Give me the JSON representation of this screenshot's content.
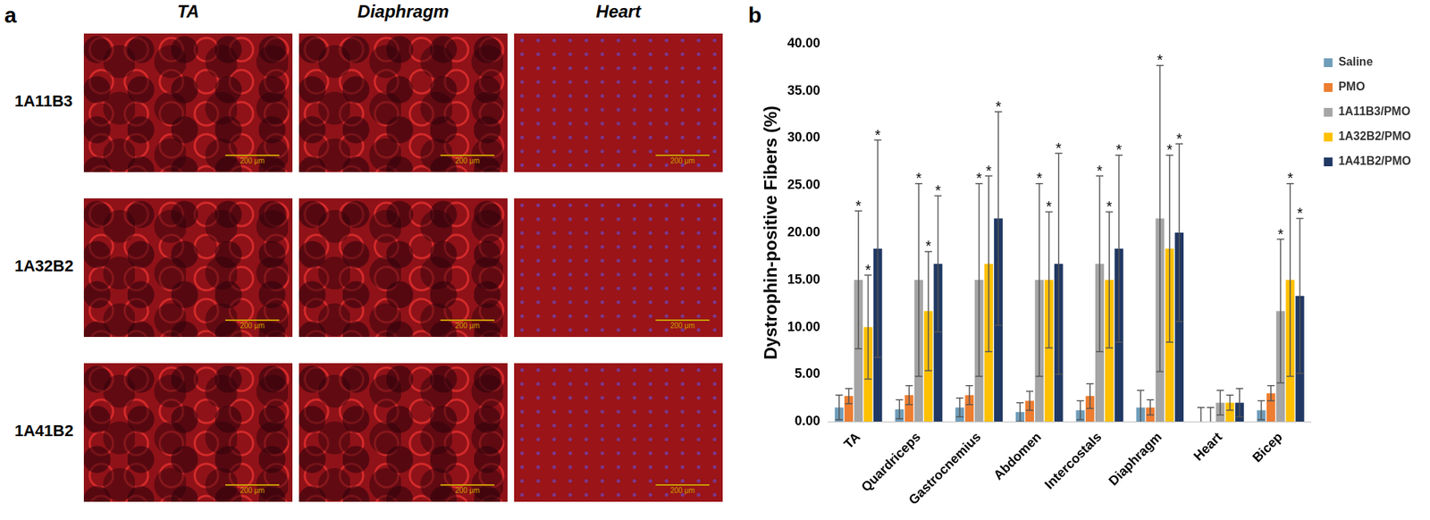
{
  "figure": {
    "panel_a": {
      "label": "a",
      "columns": [
        "TA",
        "Diaphragm",
        "Heart"
      ],
      "rows": [
        "1A11B3",
        "1A32B2",
        "1A41B2"
      ],
      "scale_bar": "200 μm"
    },
    "panel_b": {
      "label": "b"
    }
  },
  "chart_data": {
    "type": "bar",
    "y_label": "Dystrophin-positive Fibers (%)",
    "categories": [
      "TA",
      "Quardriceps",
      "Gastrocnemius",
      "Abdomen",
      "Intercostals",
      "Diaphragm",
      "Heart",
      "Bicep"
    ],
    "series": [
      {
        "name": "Saline",
        "color": "#6f9dba",
        "values": [
          1.5,
          1.3,
          1.5,
          1.0,
          1.2,
          1.5,
          0,
          1.2
        ],
        "errors": [
          1.3,
          1.0,
          1.0,
          1.0,
          1.0,
          1.8,
          1.5,
          1.0
        ],
        "significance": [
          null,
          null,
          null,
          null,
          null,
          null,
          null,
          null
        ]
      },
      {
        "name": "PMO",
        "color": "#ed7d31",
        "values": [
          2.7,
          2.8,
          2.8,
          2.2,
          2.7,
          1.5,
          0,
          3.0
        ],
        "errors": [
          0.8,
          1.0,
          1.0,
          1.0,
          1.3,
          0.8,
          1.5,
          0.8
        ],
        "significance": [
          null,
          null,
          null,
          null,
          null,
          null,
          null,
          null
        ]
      },
      {
        "name": "1A11B3/PMO",
        "color": "#a5a5a5",
        "values": [
          15.0,
          15.0,
          15.0,
          15.0,
          16.7,
          21.5,
          2.0,
          11.7
        ],
        "errors": [
          7.3,
          10.2,
          10.2,
          10.2,
          9.3,
          16.2,
          1.3,
          7.6
        ],
        "significance": [
          "*",
          "*",
          "*",
          "*",
          "*",
          "*",
          null,
          "*"
        ]
      },
      {
        "name": "1A32B2/PMO",
        "color": "#ffc000",
        "values": [
          10.0,
          11.7,
          16.7,
          15.0,
          15.0,
          18.3,
          2.0,
          15.0
        ],
        "errors": [
          5.5,
          6.3,
          9.3,
          7.2,
          7.2,
          9.9,
          0.8,
          10.2
        ],
        "significance": [
          "*",
          "*",
          "*",
          "*",
          "*",
          "*",
          null,
          "*"
        ]
      },
      {
        "name": "1A41B2/PMO",
        "color": "#203864",
        "values": [
          18.3,
          16.7,
          21.5,
          16.7,
          18.3,
          20.0,
          2.0,
          13.3
        ],
        "errors": [
          11.5,
          7.2,
          11.3,
          11.7,
          9.9,
          9.4,
          1.5,
          8.2
        ],
        "significance": [
          "*",
          "*",
          "*",
          "*",
          "*",
          "*",
          null,
          "*"
        ]
      }
    ],
    "ylim": [
      0,
      40
    ],
    "yticks": [
      {
        "value": 0,
        "label": "0.00"
      },
      {
        "value": 5,
        "label": "5.00"
      },
      {
        "value": 10,
        "label": "10.00"
      },
      {
        "value": 15,
        "label": "15.00"
      },
      {
        "value": 20,
        "label": "20.00"
      },
      {
        "value": 25,
        "label": "25.00"
      },
      {
        "value": 30,
        "label": "30.00"
      },
      {
        "value": 35,
        "label": "35.00"
      },
      {
        "value": 40,
        "label": "40.00"
      }
    ],
    "grid": false,
    "legend": "right"
  }
}
